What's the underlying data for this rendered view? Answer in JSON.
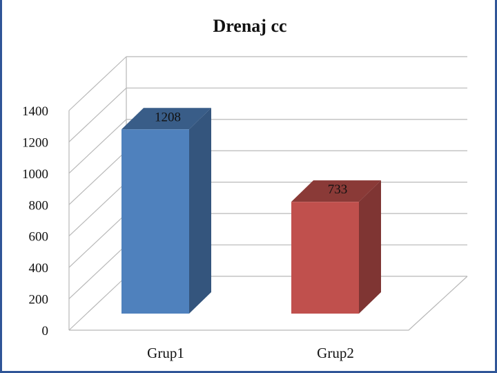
{
  "chart_data": {
    "type": "bar",
    "title": "Drenaj  cc",
    "categories": [
      "Grup1",
      "Grup2"
    ],
    "values": [
      1208,
      733
    ],
    "data_labels": [
      "1208",
      "733"
    ],
    "colors": [
      "#4f81bd",
      "#c0504d"
    ],
    "ylim": [
      0,
      1400
    ],
    "yticks": [
      "0",
      "200",
      "400",
      "600",
      "800",
      "1000",
      "1200",
      "1400"
    ],
    "grid": true,
    "legend": "none",
    "style": "3d"
  }
}
